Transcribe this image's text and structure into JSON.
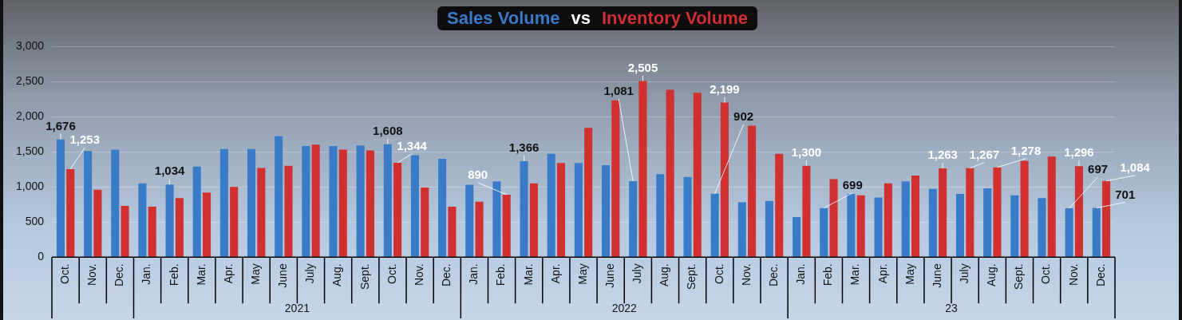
{
  "chart_data": {
    "type": "bar",
    "title": "vs",
    "categories": [
      "Oct.",
      "Nov.",
      "Dec.",
      "Jan.",
      "Feb.",
      "Mar.",
      "Apr.",
      "May",
      "June",
      "July",
      "Aug.",
      "Sept.",
      "Oct.",
      "Nov.",
      "Dec.",
      "Jan.",
      "Feb.",
      "Mar.",
      "Apr.",
      "May",
      "June",
      "July",
      "Aug.",
      "Sept.",
      "Oct.",
      "Nov.",
      "Dec.",
      "Jan.",
      "Feb.",
      "Mar.",
      "Apr.",
      "May",
      "June",
      "July",
      "Aug.",
      "Sept.",
      "Oct.",
      "Nov.",
      "Dec."
    ],
    "annotations": [
      "2021",
      "2022",
      "23"
    ],
    "series": [
      {
        "name": "Sales Volume",
        "color": "#3a7bc8",
        "values": [
          1676,
          1510,
          1530,
          1050,
          1034,
          1290,
          1540,
          1540,
          1720,
          1580,
          1580,
          1590,
          1608,
          1450,
          1400,
          1030,
          1080,
          1366,
          1470,
          1340,
          1310,
          1081,
          1180,
          1140,
          902,
          780,
          800,
          570,
          699,
          900,
          850,
          1080,
          970,
          900,
          980,
          880,
          840,
          697,
          701
        ],
        "value_labels": [
          "1,676",
          null,
          null,
          null,
          "1,034",
          null,
          null,
          null,
          null,
          null,
          null,
          null,
          "1,608",
          null,
          null,
          null,
          null,
          "1,366",
          null,
          null,
          null,
          "1,081",
          null,
          null,
          "902",
          null,
          null,
          null,
          "699",
          null,
          null,
          null,
          null,
          null,
          null,
          null,
          null,
          "697",
          "701"
        ]
      },
      {
        "name": "Inventory Volume",
        "color": "#d0302f",
        "values": [
          1253,
          960,
          730,
          720,
          840,
          920,
          1000,
          1270,
          1300,
          1600,
          1530,
          1520,
          1344,
          990,
          720,
          790,
          890,
          1050,
          1340,
          1840,
          2230,
          2505,
          2380,
          2340,
          2199,
          1870,
          1470,
          1300,
          1110,
          880,
          1050,
          1160,
          1263,
          1267,
          1278,
          1370,
          1430,
          1296,
          1084
        ],
        "value_labels": [
          "1,253",
          null,
          null,
          null,
          null,
          null,
          null,
          null,
          null,
          null,
          null,
          null,
          "1,344",
          null,
          null,
          null,
          "890",
          null,
          null,
          null,
          null,
          "2,505",
          null,
          null,
          "2,199",
          null,
          null,
          "1,300",
          null,
          null,
          null,
          null,
          "1,263",
          "1,267",
          "1,278",
          null,
          null,
          "1,296",
          "1,084"
        ]
      }
    ],
    "ylim": [
      0,
      3000
    ],
    "yticks": [
      0,
      500,
      {
        "value": 1000,
        "label": "1,000"
      },
      {
        "value": 1500,
        "label": "1,500"
      },
      {
        "value": 2000,
        "label": "2,000"
      },
      {
        "value": 2500,
        "label": "2,500"
      },
      {
        "value": 3000,
        "label": "3,000"
      }
    ],
    "grid": "y",
    "legend": false
  }
}
